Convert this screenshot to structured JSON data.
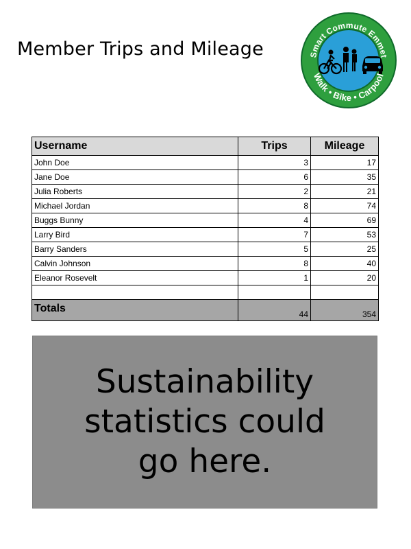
{
  "title": "Member Trips and Mileage",
  "logo": {
    "top_text": "Smart Commute Emmet",
    "bottom_text": "Walk • Bike • Carpool",
    "colors": {
      "ring": "#2e9f3e",
      "inner": "#2a9fd8",
      "ring_outline": "#0f6a2a"
    },
    "icons": [
      "bicycle-icon",
      "pedestrians-icon",
      "car-icon"
    ]
  },
  "table": {
    "headers": {
      "username": "Username",
      "trips": "Trips",
      "mileage": "Mileage"
    },
    "rows": [
      {
        "username": "John Doe",
        "trips": "3",
        "mileage": "17"
      },
      {
        "username": "Jane Doe",
        "trips": "6",
        "mileage": "35"
      },
      {
        "username": "Julia Roberts",
        "trips": "2",
        "mileage": "21"
      },
      {
        "username": "Michael Jordan",
        "trips": "8",
        "mileage": "74"
      },
      {
        "username": "Buggs Bunny",
        "trips": "4",
        "mileage": "69"
      },
      {
        "username": "Larry Bird",
        "trips": "7",
        "mileage": "53"
      },
      {
        "username": "Barry Sanders",
        "trips": "5",
        "mileage": "25"
      },
      {
        "username": "Calvin Johnson",
        "trips": "8",
        "mileage": "40"
      },
      {
        "username": "Eleanor Rosevelt",
        "trips": "1",
        "mileage": "20"
      },
      {
        "username": "",
        "trips": "",
        "mileage": ""
      }
    ],
    "totals": {
      "label": "Totals",
      "trips": "44",
      "mileage": "354"
    },
    "colors": {
      "header_bg": "#d9d9d9",
      "totals_bg": "#a6a6a6"
    }
  },
  "stats_box": {
    "text": "Sustainability statistics could go here.",
    "color": "#8c8c8c"
  }
}
